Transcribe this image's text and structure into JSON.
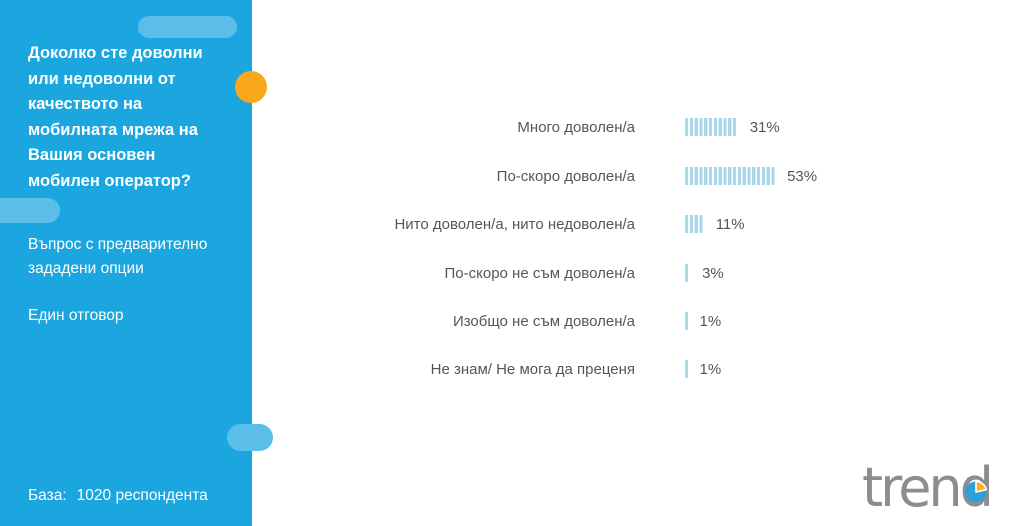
{
  "sidebar": {
    "title": "Доколко сте доволни или недоволни от качеството на мобилната мрежа на Вашия основен мобилен оператор?",
    "question_type": "Въпрос с предварително зададени опции",
    "answer_mode": "Един отговор",
    "base_label": "База:",
    "base_value": "1020 респондента",
    "background_color": "#1CA6E0",
    "decor_pill_color": "#5BBEE9",
    "accent_dot_color": "#F9A81C"
  },
  "chart_data": {
    "type": "bar",
    "orientation": "horizontal",
    "title": "",
    "xlabel": "",
    "ylabel": "",
    "xlim": [
      0,
      100
    ],
    "grid": false,
    "bar_style": "striped",
    "bar_color": "#A9D8EA",
    "label_color": "#55565A",
    "categories": [
      "Много доволен/а",
      "По-скоро доволен/а",
      "Нито доволен/а, нито недоволен/а",
      "По-скоро не съм доволен/а",
      "Изобщо не съм доволен/а",
      "Не знам/ Не мога да преценя"
    ],
    "values": [
      31,
      53,
      11,
      3,
      1,
      1
    ],
    "value_labels": [
      "31%",
      "53%",
      "11%",
      "3%",
      "1%",
      "1%"
    ]
  },
  "logo": {
    "text": "trend",
    "text_color": "#8B8D90",
    "pie_blue": "#2E9FD9",
    "pie_yellow": "#F9B21B"
  }
}
